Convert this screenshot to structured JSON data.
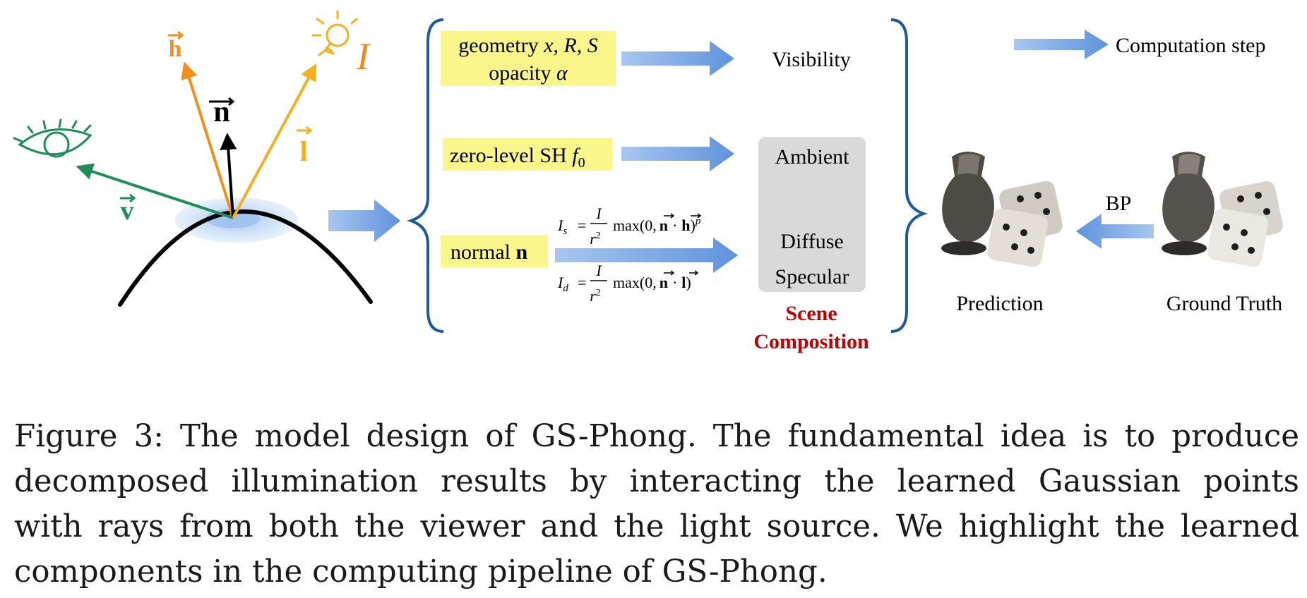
{
  "figure": {
    "lighting": {
      "vector_h": "h",
      "vector_n": "n",
      "vector_l": "l",
      "vector_v": "v",
      "light_label": "I"
    },
    "inputs": {
      "geometry_line1_prefix": "geometry ",
      "geometry_line1_vars": "x, R, S",
      "geometry_line2_prefix": "opacity ",
      "geometry_line2_var": "α",
      "sh_prefix": "zero-level SH ",
      "sh_var": "f",
      "sh_sub": "0",
      "normal_prefix": "normal ",
      "normal_var": "n"
    },
    "equations": {
      "specular_lhs": "I",
      "specular_sub": "s",
      "diffuse_lhs": "I",
      "diffuse_sub": "d",
      "numerator": "I",
      "denominator": "r",
      "denominator_exp": "2",
      "max_open": "max(0,",
      "dot": "·",
      "vec_n": "n",
      "vec_h": "h",
      "vec_l": "l",
      "close": ")",
      "power": "p",
      "equals": "="
    },
    "outputs": {
      "visibility": "Visibility",
      "ambient": "Ambient",
      "diffuse": "Diffuse",
      "specular": "Specular",
      "scene_line1": "Scene",
      "scene_line2": "Composition"
    },
    "legend": {
      "label": "Computation step"
    },
    "results": {
      "prediction": "Prediction",
      "ground_truth": "Ground Truth",
      "bp": "BP"
    },
    "colors": {
      "highlight": "#faf68c",
      "brace": "#1f5a9b",
      "arrow": "#7aa7e6",
      "scene": "#c00000",
      "view_green": "#1f8c5a",
      "h_orange": "#f28e1c",
      "l_yellow": "#f5b021",
      "light_orange": "#f08a12"
    }
  },
  "caption": {
    "lines": [
      "Figure 3: The model design of GS-Phong. The fundamental idea is to produce",
      "decomposed illumination results by interacting the learned Gaussian points",
      "with rays from both the viewer and the light source. We highlight the learned",
      "components in the computing pipeline of GS-Phong."
    ]
  }
}
